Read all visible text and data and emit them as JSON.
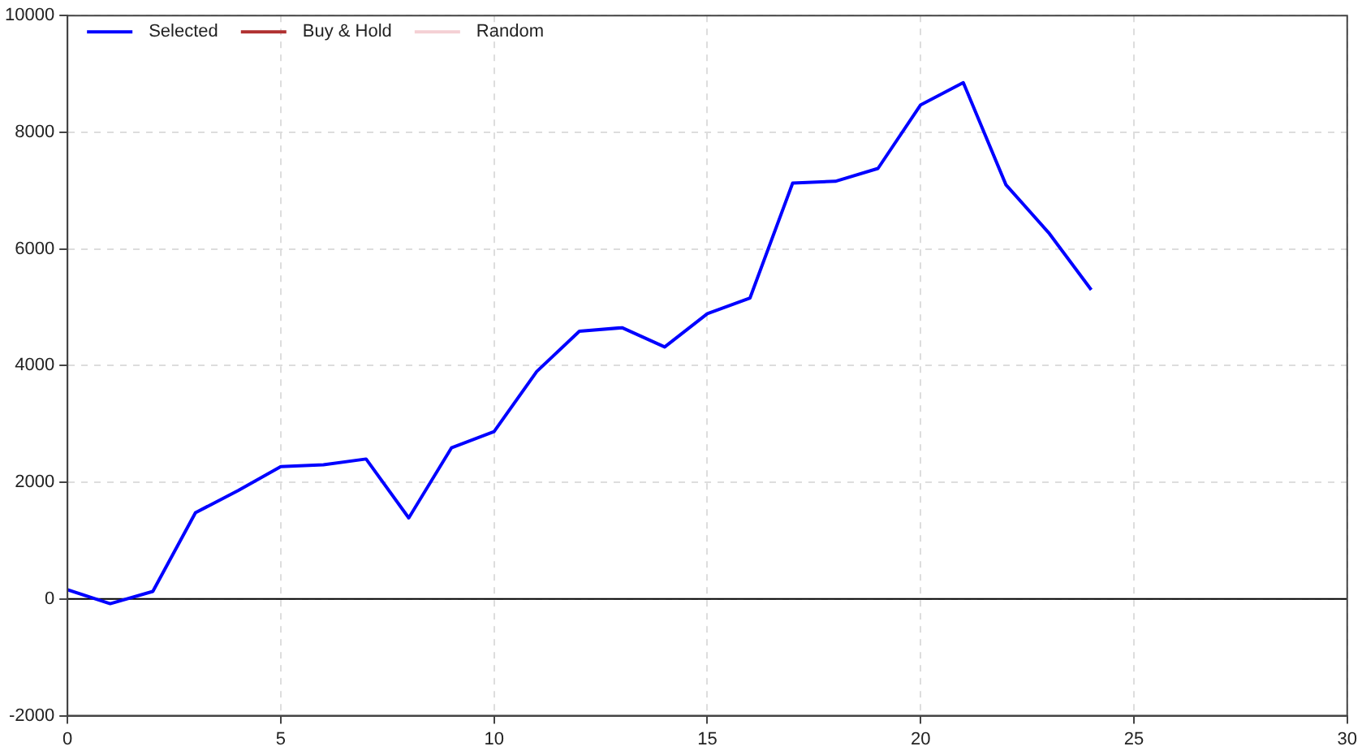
{
  "chart_data": {
    "type": "line",
    "x": [
      0,
      1,
      2,
      3,
      4,
      5,
      6,
      7,
      8,
      9,
      10,
      11,
      12,
      13,
      14,
      15,
      16,
      17,
      18,
      19,
      20,
      21,
      22,
      23,
      24
    ],
    "series": [
      {
        "name": "Selected",
        "color": "#0000ff",
        "values": [
          160,
          -80,
          130,
          1480,
          1860,
          2270,
          2300,
          2400,
          1390,
          2590,
          2870,
          3900,
          4590,
          4650,
          4320,
          4890,
          5160,
          7130,
          7160,
          7380,
          8470,
          8850,
          7100,
          6280,
          5300
        ]
      },
      {
        "name": "Buy & Hold",
        "color": "#b03030",
        "values": [
          null,
          null,
          null,
          null,
          null,
          null,
          null,
          null,
          null,
          null,
          null,
          null,
          null,
          null,
          null,
          null,
          null,
          null,
          null,
          null,
          null,
          null,
          null,
          null,
          null
        ]
      },
      {
        "name": "Random",
        "color": "#f4d0d4",
        "values": [
          null,
          null,
          null,
          null,
          null,
          null,
          null,
          null,
          null,
          null,
          null,
          null,
          null,
          null,
          null,
          null,
          null,
          null,
          null,
          null,
          null,
          null,
          null,
          null,
          null
        ]
      }
    ],
    "xlim": [
      0,
      30
    ],
    "xticks": [
      0,
      5,
      10,
      15,
      20,
      25,
      30
    ],
    "ylim": [
      -2000,
      10000
    ],
    "yticks": [
      -2000,
      0,
      2000,
      4000,
      6000,
      8000,
      10000
    ],
    "ref_lines": [
      {
        "axis": "y",
        "value": 0,
        "color": "#000000"
      }
    ],
    "grid": true,
    "legend": "top left",
    "marker": "none",
    "line_style": "solid"
  }
}
